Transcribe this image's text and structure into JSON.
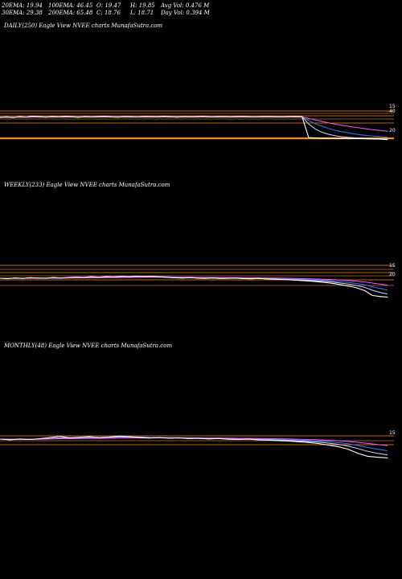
{
  "header": {
    "ema20": "20EMA: 19.94",
    "ema100": "100EMA: 46.45",
    "open": "O: 19.47",
    "high": "H: 19.85",
    "avgvol": "Avg Vol: 0.476  M",
    "ema30": "30EMA: 29.38",
    "ema200": "200EMA: 65.48",
    "close": "C: 18.76",
    "low": "L: 18.71",
    "dayvol": "Day Vol: 0.394  M"
  },
  "colors": {
    "background": "#000000",
    "price": "#ffffff",
    "ema_blue": "#3a7bff",
    "ema_pink": "#ff55ff",
    "ema_light": "#cfd8ff",
    "level_orange": "#ff8c00",
    "level_brown": "#b8733a"
  },
  "chart_data": [
    {
      "type": "line",
      "title": "DAILY(250) Eagle  View  NVEE charts MunafaSutra.com",
      "tick_labels": [
        "15",
        "40",
        "20"
      ],
      "series": [
        {
          "name": "",
          "values": [
            39.4,
            39.8,
            39.2,
            40.0,
            39.6,
            40.3,
            39.9,
            39.5,
            40.1,
            39.7,
            40.2,
            39.8,
            39.4,
            40.0,
            39.6,
            39.9,
            40.2,
            39.7,
            39.5,
            40.0,
            39.8,
            39.6,
            40.1,
            39.9,
            39.7,
            40.3,
            39.8,
            39.5,
            40.0,
            39.7,
            39.9,
            40.2,
            39.6,
            39.8,
            40.0,
            39.7,
            39.9,
            40.1,
            39.8,
            39.6,
            39.9,
            40.0,
            39.8,
            39.7,
            39.9,
            40.1,
            39.8,
            20.6,
            20.3,
            20.1,
            20.0,
            19.9,
            19.85,
            19.8,
            19.7,
            19.6,
            19.5,
            19.4,
            19.2,
            18.76
          ]
        }
      ]
    },
    {
      "type": "line",
      "title": "WEEKLY(233) Eagle  View  NVEE charts MunafaSutra.com",
      "tick_labels": [
        "15",
        "20"
      ],
      "series": [
        {
          "name": "",
          "values": [
            40.0,
            39.5,
            40.4,
            39.8,
            40.6,
            40.2,
            39.9,
            40.8,
            40.3,
            40.9,
            41.4,
            41.0,
            41.8,
            41.2,
            41.9,
            41.5,
            42.2,
            41.7,
            42.4,
            41.9,
            42.1,
            41.6,
            40.9,
            40.5,
            40.2,
            40.7,
            40.1,
            39.8,
            40.3,
            39.7,
            39.9,
            40.2,
            39.6,
            39.4,
            39.9,
            39.3,
            39.0,
            38.6,
            38.2,
            37.8,
            37.2,
            36.6,
            35.8,
            35.0,
            33.9,
            32.5,
            31.0,
            29.0,
            26.0,
            20.5,
            19.4,
            18.76
          ]
        }
      ]
    },
    {
      "type": "line",
      "title": "MONTHLY(48) Eagle  View  NVEE charts MunafaSutra.com",
      "tick_labels": [
        "15"
      ],
      "series": [
        {
          "name": "",
          "values": [
            40.0,
            39.2,
            40.1,
            39.5,
            40.4,
            41.6,
            43.2,
            41.5,
            42.1,
            42.6,
            41.8,
            42.4,
            43.4,
            42.6,
            41.9,
            41.2,
            41.7,
            40.9,
            41.3,
            40.6,
            40.8,
            40.2,
            40.6,
            39.8,
            39.5,
            39.9,
            39.2,
            38.8,
            38.3,
            37.8,
            37.0,
            36.2,
            35.0,
            33.4,
            31.5,
            28.6,
            24.0,
            20.5,
            19.5,
            18.76
          ]
        }
      ]
    }
  ]
}
